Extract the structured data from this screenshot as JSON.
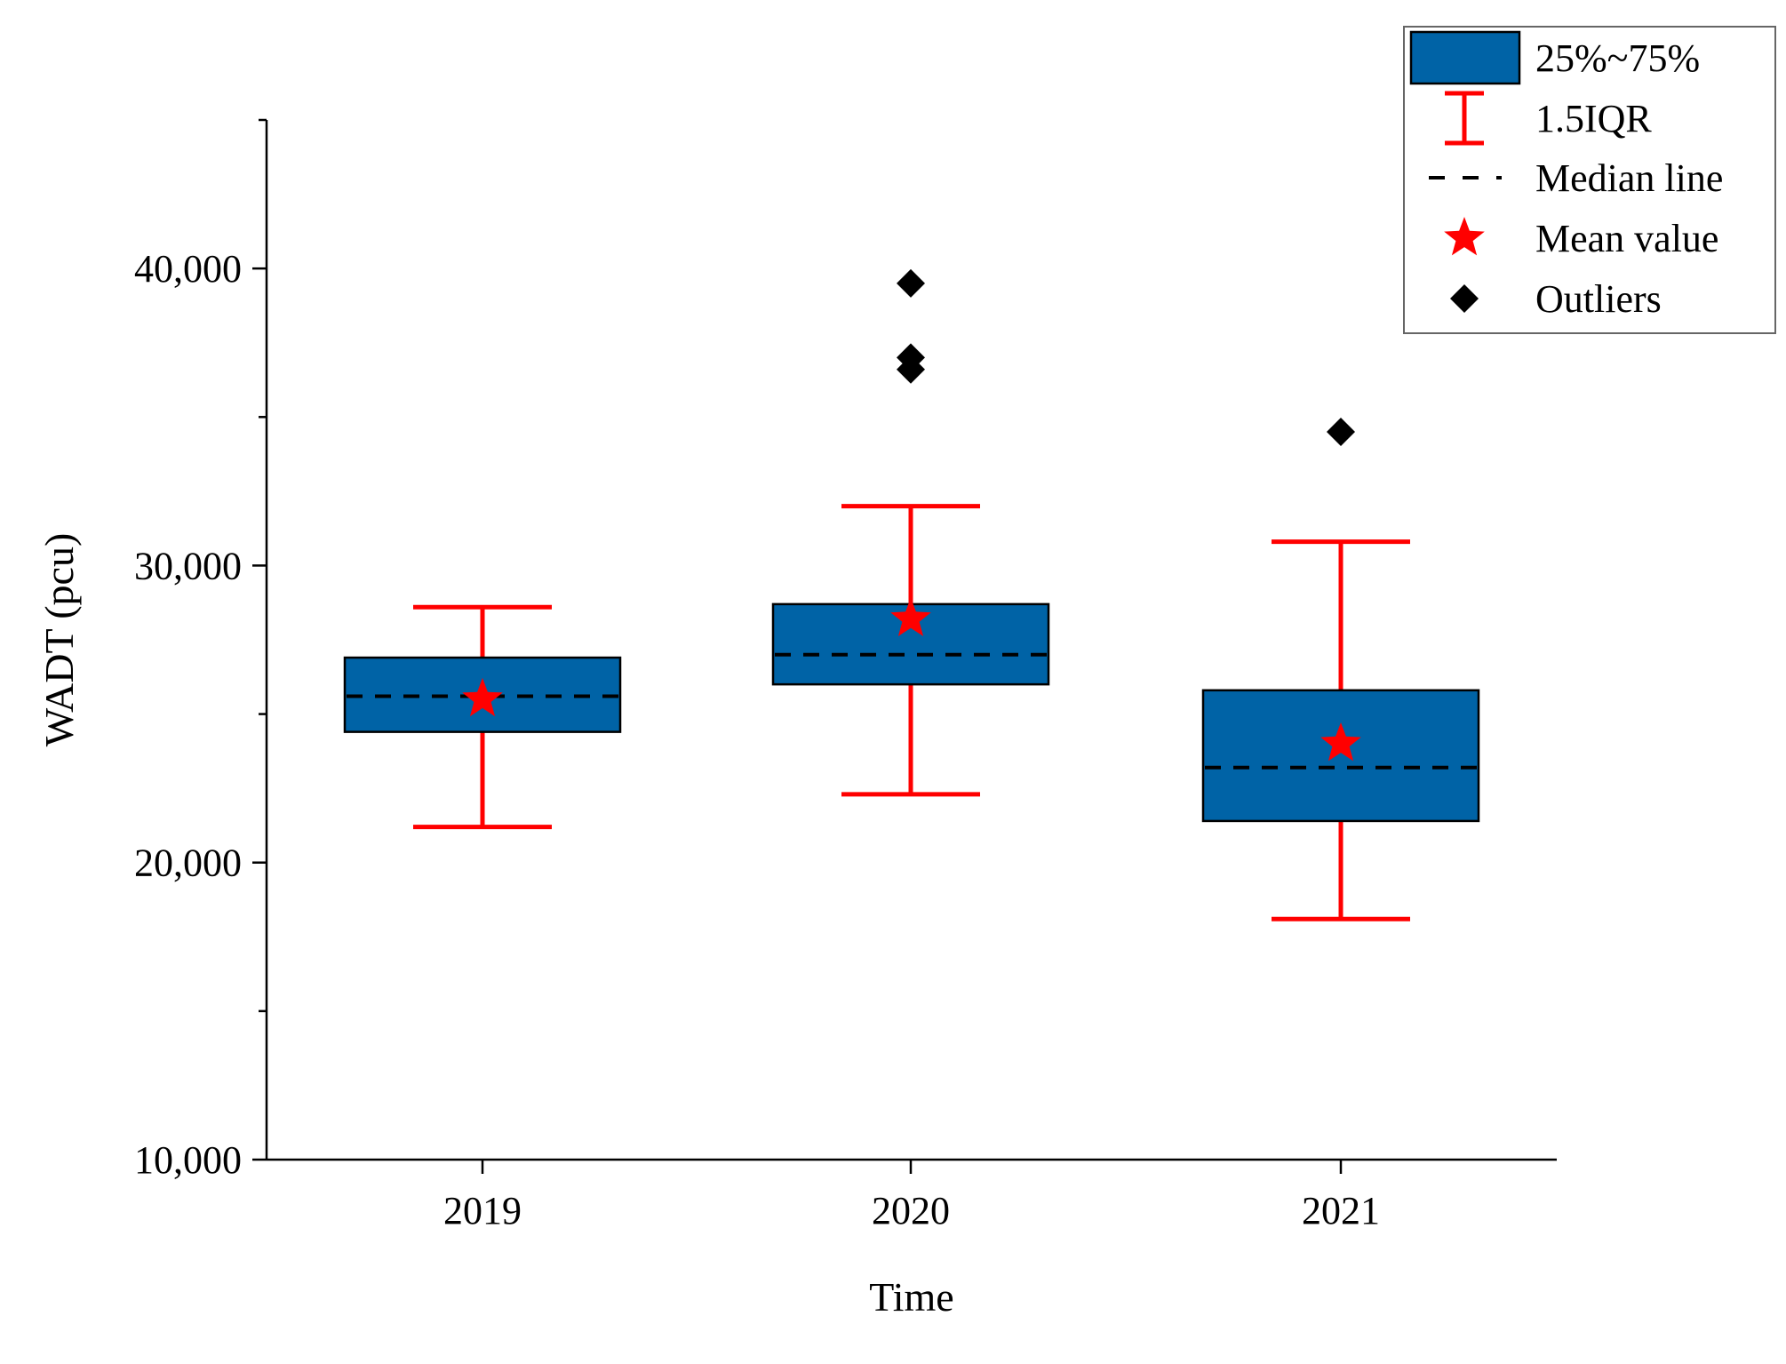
{
  "chart_data": {
    "type": "box",
    "title": "",
    "xlabel": "Time",
    "ylabel": "WADT (pcu)",
    "ylim": [
      10000,
      45000
    ],
    "major_ticks": [
      10000,
      20000,
      30000,
      40000
    ],
    "minor_ticks": [
      15000,
      25000,
      35000,
      45000
    ],
    "tick_labels": [
      "10,000",
      "20,000",
      "30,000",
      "40,000"
    ],
    "categories": [
      "2019",
      "2020",
      "2021"
    ],
    "boxes": [
      {
        "category": "2019",
        "whisker_low": 21200,
        "q1": 24400,
        "median": 25600,
        "q3": 26900,
        "whisker_high": 28600,
        "mean": 25500,
        "outliers": []
      },
      {
        "category": "2020",
        "whisker_low": 22300,
        "q1": 26000,
        "median": 27000,
        "q3": 28700,
        "whisker_high": 32000,
        "mean": 28200,
        "outliers": [
          39500,
          37000,
          36600
        ]
      },
      {
        "category": "2021",
        "whisker_low": 18100,
        "q1": 21400,
        "median": 23200,
        "q3": 25800,
        "whisker_high": 30800,
        "mean": 24000,
        "outliers": [
          34500
        ]
      }
    ],
    "legend": {
      "position": "top-right",
      "entries": [
        {
          "key": "box",
          "label": "25%~75%"
        },
        {
          "key": "whisker",
          "label": "1.5IQR"
        },
        {
          "key": "median",
          "label": "Median line"
        },
        {
          "key": "mean",
          "label": "Mean value"
        },
        {
          "key": "outlier",
          "label": "Outliers"
        }
      ]
    },
    "colors": {
      "box_fill": "#0063A6",
      "box_stroke": "#000000",
      "whisker": "#FF0000",
      "median": "#000000",
      "mean": "#FF0000",
      "outlier": "#000000"
    }
  }
}
